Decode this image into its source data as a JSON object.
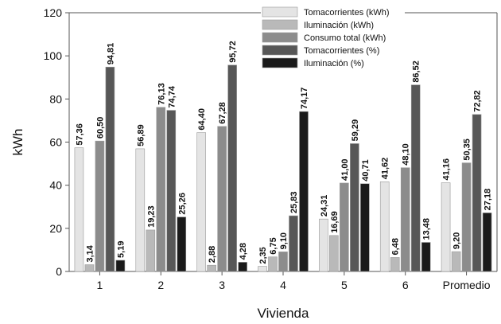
{
  "chart_data": {
    "type": "bar",
    "xlabel": "Vivienda",
    "ylabel": "kWh",
    "ylim": [
      0,
      120
    ],
    "yticks": [
      0,
      20,
      40,
      60,
      80,
      100,
      120
    ],
    "grid": false,
    "legend_position": "top-right",
    "categories": [
      "1",
      "2",
      "3",
      "4",
      "5",
      "6",
      "Promedio"
    ],
    "series": [
      {
        "name": "Tomacorrientes (kWh)",
        "color": "#e4e4e4",
        "values": [
          57.36,
          56.89,
          64.4,
          2.35,
          24.31,
          41.62,
          41.16
        ],
        "labels": [
          "57,36",
          "56,89",
          "64,40",
          "2,35",
          "24,31",
          "41,62",
          "41,16"
        ]
      },
      {
        "name": "Iluminación (kWh)",
        "color": "#b9b9b9",
        "values": [
          3.14,
          19.23,
          2.88,
          6.75,
          16.69,
          6.48,
          9.2
        ],
        "labels": [
          "3,14",
          "19,23",
          "2,88",
          "6,75",
          "16,69",
          "6,48",
          "9,20"
        ]
      },
      {
        "name": "Consumo total (kWh)",
        "color": "#8c8c8c",
        "values": [
          60.5,
          76.13,
          67.28,
          9.1,
          41.0,
          48.1,
          50.35
        ],
        "labels": [
          "60,50",
          "76,13",
          "67,28",
          "9,10",
          "41,00",
          "48,10",
          "50,35"
        ]
      },
      {
        "name": "Tomacorrientes (%)",
        "color": "#575757",
        "values": [
          94.81,
          74.74,
          95.72,
          25.83,
          59.29,
          86.52,
          72.82
        ],
        "labels": [
          "94,81",
          "74,74",
          "95,72",
          "25,83",
          "59,29",
          "86,52",
          "72,82"
        ]
      },
      {
        "name": "Iluminación (%)",
        "color": "#1a1a1a",
        "values": [
          5.19,
          25.26,
          4.28,
          74.17,
          40.71,
          13.48,
          27.18
        ],
        "labels": [
          "5,19",
          "25,26",
          "4,28",
          "74,17",
          "40,71",
          "13,48",
          "27,18"
        ]
      }
    ]
  }
}
